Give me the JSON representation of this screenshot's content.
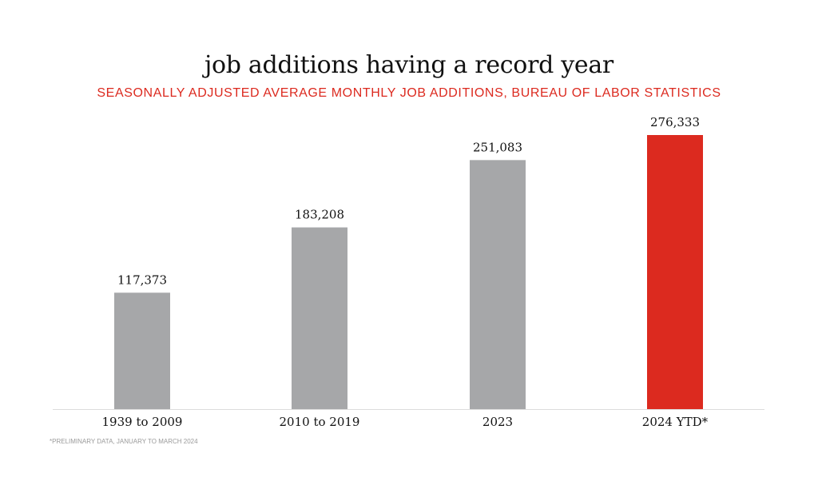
{
  "chart_data": {
    "type": "bar",
    "title": "job additions having a record year",
    "subtitle": "SEASONALLY ADJUSTED AVERAGE MONTHLY JOB ADDITIONS, BUREAU OF LABOR STATISTICS",
    "categories": [
      "1939 to 2009",
      "2010 to 2019",
      "2023",
      "2024 YTD*"
    ],
    "values": [
      117373,
      183208,
      251083,
      276333
    ],
    "value_labels": [
      "117,373",
      "183,208",
      "251,083",
      "276,333"
    ],
    "colors": [
      "#a6a7a9",
      "#a6a7a9",
      "#a6a7a9",
      "#dc2a1f"
    ],
    "xlabel": "",
    "ylabel": "",
    "ylim": [
      0,
      276333
    ],
    "grid": false,
    "footnote": "*PRELIMINARY DATA, JANUARY TO MARCH 2024"
  }
}
